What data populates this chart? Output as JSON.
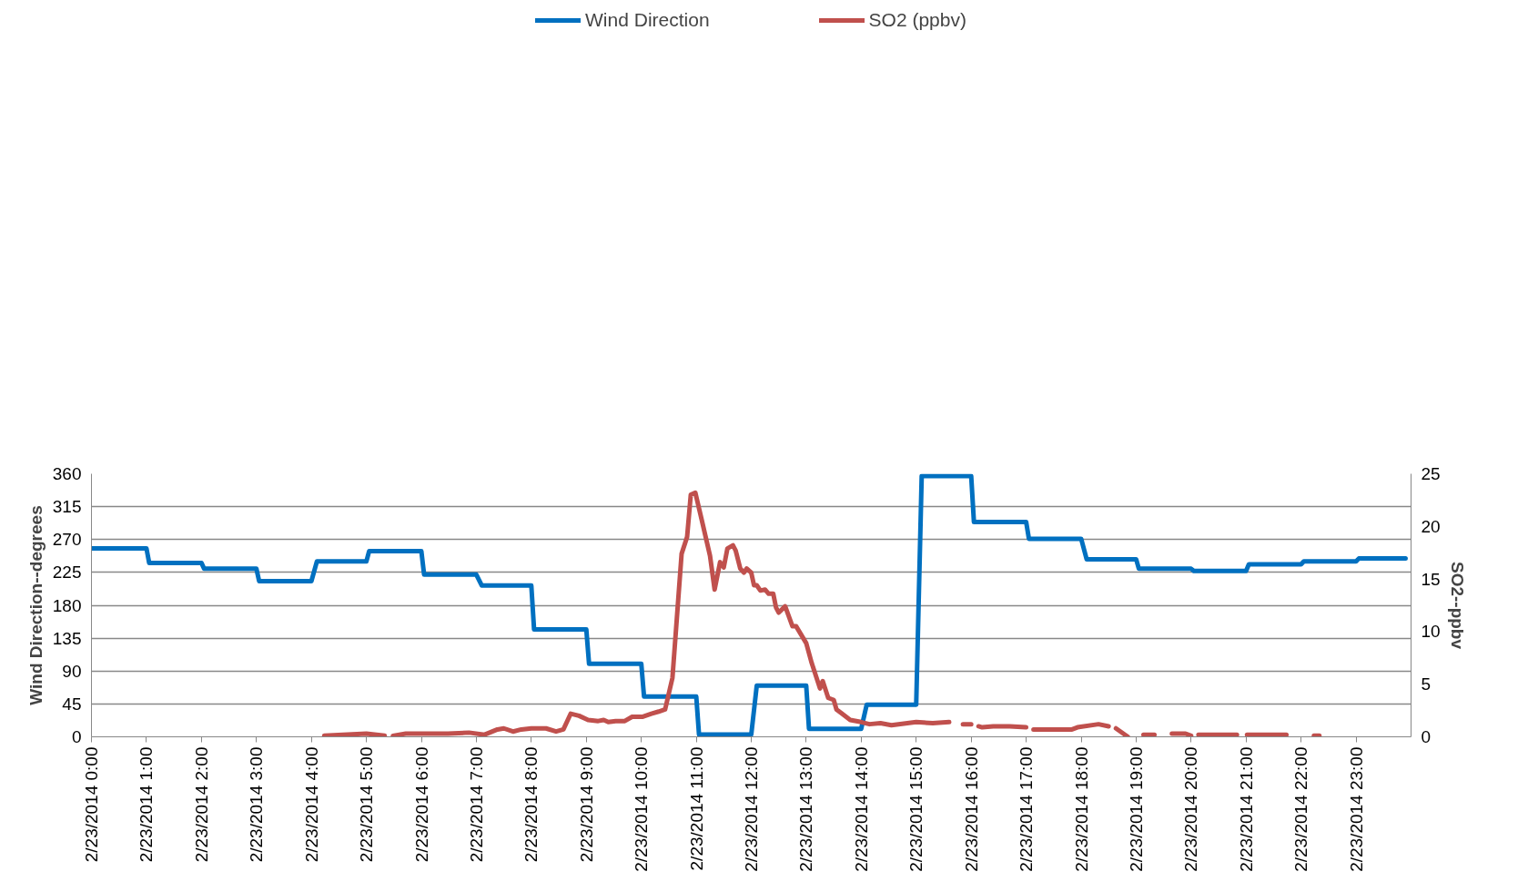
{
  "chart_data": {
    "type": "line",
    "ylabel": "Wind Direction--degrees",
    "y2label": "SO2--ppbv",
    "xlim": [
      "2014-02-23T00:00",
      "2014-02-24T00:00"
    ],
    "xticks": [
      {
        "value": "2014-02-23T00:00",
        "label": "2/23/2014 0:00"
      },
      {
        "value": "2014-02-23T01:00",
        "label": "2/23/2014 1:00"
      },
      {
        "value": "2014-02-23T02:00",
        "label": "2/23/2014 2:00"
      },
      {
        "value": "2014-02-23T03:00",
        "label": "2/23/2014 3:00"
      },
      {
        "value": "2014-02-23T04:00",
        "label": "2/23/2014 4:00"
      },
      {
        "value": "2014-02-23T05:00",
        "label": "2/23/2014 5:00"
      },
      {
        "value": "2014-02-23T06:00",
        "label": "2/23/2014 6:00"
      },
      {
        "value": "2014-02-23T07:00",
        "label": "2/23/2014 7:00"
      },
      {
        "value": "2014-02-23T08:00",
        "label": "2/23/2014 8:00"
      },
      {
        "value": "2014-02-23T09:00",
        "label": "2/23/2014 9:00"
      },
      {
        "value": "2014-02-23T10:00",
        "label": "2/23/2014 10:00"
      },
      {
        "value": "2014-02-23T11:00",
        "label": "2/23/2014 11:00"
      },
      {
        "value": "2014-02-23T12:00",
        "label": "2/23/2014 12:00"
      },
      {
        "value": "2014-02-23T13:00",
        "label": "2/23/2014 13:00"
      },
      {
        "value": "2014-02-23T14:00",
        "label": "2/23/2014 14:00"
      },
      {
        "value": "2014-02-23T15:00",
        "label": "2/23/2014 15:00"
      },
      {
        "value": "2014-02-23T16:00",
        "label": "2/23/2014 16:00"
      },
      {
        "value": "2014-02-23T17:00",
        "label": "2/23/2014 17:00"
      },
      {
        "value": "2014-02-23T18:00",
        "label": "2/23/2014 18:00"
      },
      {
        "value": "2014-02-23T19:00",
        "label": "2/23/2014 19:00"
      },
      {
        "value": "2014-02-23T20:00",
        "label": "2/23/2014 20:00"
      },
      {
        "value": "2014-02-23T21:00",
        "label": "2/23/2014 21:00"
      },
      {
        "value": "2014-02-23T22:00",
        "label": "2/23/2014 22:00"
      },
      {
        "value": "2014-02-23T23:00",
        "label": "2/23/2014 23:00"
      }
    ],
    "ylim": [
      0,
      360
    ],
    "yticks": [
      0,
      45,
      90,
      135,
      180,
      225,
      270,
      315,
      360
    ],
    "y2lim": [
      0,
      25
    ],
    "y2ticks": [
      0,
      5,
      10,
      15,
      20,
      25
    ],
    "grid": "y",
    "legend": "top",
    "series": [
      {
        "name": "Wind Direction",
        "color": "#0070c0",
        "x": [
          "2014-02-23T00:00",
          "2014-02-23T01:00",
          "2014-02-23T01:03",
          "2014-02-23T02:00",
          "2014-02-23T02:03",
          "2014-02-23T03:00",
          "2014-02-23T03:03",
          "2014-02-23T04:00",
          "2014-02-23T04:06",
          "2014-02-23T05:00",
          "2014-02-23T05:03",
          "2014-02-23T06:00",
          "2014-02-23T06:03",
          "2014-02-23T07:00",
          "2014-02-23T07:06",
          "2014-02-23T08:00",
          "2014-02-23T08:03",
          "2014-02-23T09:00",
          "2014-02-23T09:03",
          "2014-02-23T10:00",
          "2014-02-23T10:03",
          "2014-02-23T11:00",
          "2014-02-23T11:03",
          "2014-02-23T12:00",
          "2014-02-23T12:06",
          "2014-02-23T13:00",
          "2014-02-23T13:03",
          "2014-02-23T14:00",
          "2014-02-23T14:06",
          "2014-02-23T15:00",
          "2014-02-23T15:06",
          "2014-02-23T16:00",
          "2014-02-23T16:03",
          "2014-02-23T17:00",
          "2014-02-23T17:03",
          "2014-02-23T18:00",
          "2014-02-23T18:06",
          "2014-02-23T19:00",
          "2014-02-23T19:03",
          "2014-02-23T20:00",
          "2014-02-23T20:03",
          "2014-02-23T21:00",
          "2014-02-23T21:03",
          "2014-02-23T22:00",
          "2014-02-23T22:03",
          "2014-02-23T23:00",
          "2014-02-23T23:03",
          "2014-02-23T23:54"
        ],
        "values": [
          258,
          258,
          238,
          238,
          230,
          230,
          213,
          213,
          240,
          240,
          254,
          254,
          222,
          222,
          207,
          207,
          147,
          147,
          100,
          100,
          55,
          55,
          3,
          3,
          70,
          70,
          11,
          11,
          44,
          44,
          357,
          357,
          294,
          294,
          271,
          271,
          243,
          243,
          230,
          230,
          227,
          227,
          236,
          236,
          240,
          240,
          244,
          244
        ]
      },
      {
        "name": "SO2 (ppbv)",
        "color": "#c0504d",
        "axis": "y2",
        "x": [
          "2014-02-23T04:14",
          "2014-02-23T05:00",
          "2014-02-23T05:20",
          "2014-02-23T05:24",
          "2014-02-23T05:29",
          "2014-02-23T05:43",
          "2014-02-23T06:14",
          "2014-02-23T06:29",
          "2014-02-23T06:52",
          "2014-02-23T07:09",
          "2014-02-23T07:23",
          "2014-02-23T07:30",
          "2014-02-23T07:40",
          "2014-02-23T07:49",
          "2014-02-23T08:00",
          "2014-02-23T08:16",
          "2014-02-23T08:27",
          "2014-02-23T08:35",
          "2014-02-23T08:43",
          "2014-02-23T08:52",
          "2014-02-23T09:02",
          "2014-02-23T09:13",
          "2014-02-23T09:19",
          "2014-02-23T09:24",
          "2014-02-23T09:32",
          "2014-02-23T09:42",
          "2014-02-23T09:50",
          "2014-02-23T10:01",
          "2014-02-23T10:11",
          "2014-02-23T10:19",
          "2014-02-23T10:26",
          "2014-02-23T10:34",
          "2014-02-23T10:44",
          "2014-02-23T10:50",
          "2014-02-23T10:54",
          "2014-02-23T10:59",
          "2014-02-23T11:06",
          "2014-02-23T11:15",
          "2014-02-23T11:20",
          "2014-02-23T11:26",
          "2014-02-23T11:30",
          "2014-02-23T11:34",
          "2014-02-23T11:40",
          "2014-02-23T11:43",
          "2014-02-23T11:48",
          "2014-02-23T11:52",
          "2014-02-23T11:55",
          "2014-02-23T12:00",
          "2014-02-23T12:03",
          "2014-02-23T12:06",
          "2014-02-23T12:10",
          "2014-02-23T12:15",
          "2014-02-23T12:19",
          "2014-02-23T12:24",
          "2014-02-23T12:27",
          "2014-02-23T12:30",
          "2014-02-23T12:37",
          "2014-02-23T12:45",
          "2014-02-23T12:49",
          "2014-02-23T13:00",
          "2014-02-23T13:06",
          "2014-02-23T13:15",
          "2014-02-23T13:18",
          "2014-02-23T13:24",
          "2014-02-23T13:30",
          "2014-02-23T13:33",
          "2014-02-23T13:39",
          "2014-02-23T13:48",
          "2014-02-23T14:00",
          "2014-02-23T14:09",
          "2014-02-23T14:21",
          "2014-02-23T14:33",
          "2014-02-23T15:00",
          "2014-02-23T15:18",
          "2014-02-23T15:36",
          "2014-02-23T15:42",
          "2014-02-23T15:51",
          "2014-02-23T16:00",
          "2014-02-23T16:04",
          "2014-02-23T16:08",
          "2014-02-23T16:12",
          "2014-02-23T16:24",
          "2014-02-23T16:42",
          "2014-02-23T17:00",
          "2014-02-23T17:04",
          "2014-02-23T17:08",
          "2014-02-23T17:24",
          "2014-02-23T17:50",
          "2014-02-23T17:56",
          "2014-02-23T18:19",
          "2014-02-23T18:30",
          "2014-02-23T18:34",
          "2014-02-23T18:38",
          "2014-02-23T18:51",
          "2014-02-23T18:57",
          "2014-02-23T19:08",
          "2014-02-23T19:20",
          "2014-02-23T19:30",
          "2014-02-23T19:39",
          "2014-02-23T19:54",
          "2014-02-23T20:00",
          "2014-02-23T20:04",
          "2014-02-23T20:08",
          "2014-02-23T20:30",
          "2014-02-23T20:50",
          "2014-02-23T20:55",
          "2014-02-23T21:01",
          "2014-02-23T21:24",
          "2014-02-23T21:44",
          "2014-02-23T22:00",
          "2014-02-23T22:14",
          "2014-02-23T22:20"
        ],
        "values": [
          0.1,
          0.3,
          0.1,
          null,
          0.1,
          0.3,
          0.3,
          0.3,
          0.4,
          0.2,
          0.7,
          0.8,
          0.5,
          0.7,
          0.8,
          0.8,
          0.5,
          0.7,
          2.2,
          2.0,
          1.6,
          1.5,
          1.6,
          1.4,
          1.5,
          1.5,
          1.9,
          1.9,
          2.2,
          2.4,
          2.6,
          5.6,
          17.4,
          19.0,
          23.0,
          23.2,
          20.6,
          17.2,
          14.0,
          16.6,
          16.1,
          17.9,
          18.2,
          17.7,
          16.0,
          15.6,
          16.0,
          15.6,
          14.4,
          14.4,
          13.9,
          14.0,
          13.6,
          13.6,
          12.3,
          11.8,
          12.4,
          10.5,
          10.5,
          8.9,
          7.0,
          4.6,
          5.3,
          3.7,
          3.5,
          2.6,
          2.2,
          1.6,
          1.4,
          1.2,
          1.3,
          1.1,
          1.4,
          1.3,
          1.4,
          null,
          1.2,
          1.2,
          null,
          1.0,
          0.9,
          1.0,
          1.0,
          0.9,
          null,
          0.7,
          0.7,
          0.7,
          0.9,
          1.2,
          1.0,
          null,
          0.8,
          0.0,
          null,
          0.2,
          0.2,
          null,
          0.3,
          0.3,
          0.1,
          null,
          0.2,
          0.2,
          0.2,
          null,
          0.2,
          0.2,
          0.2,
          null,
          0.1,
          0.1
        ]
      }
    ]
  }
}
